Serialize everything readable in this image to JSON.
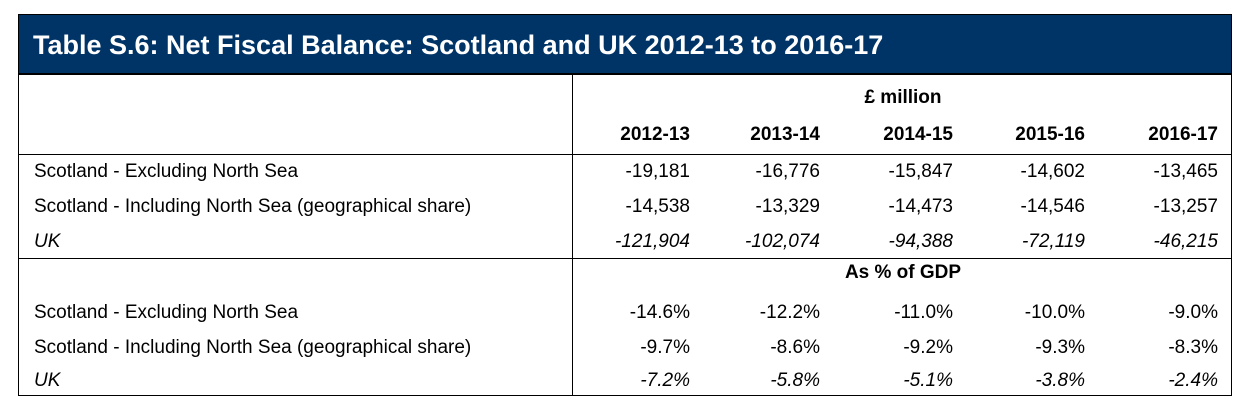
{
  "title": "Table S.6: Net Fiscal Balance: Scotland and UK 2012-13 to 2016-17",
  "years": [
    "2012-13",
    "2013-14",
    "2014-15",
    "2015-16",
    "2016-17"
  ],
  "sections": [
    {
      "heading": "£ million",
      "rows": [
        {
          "label": "Scotland - Excluding North Sea",
          "values": [
            "-19,181",
            "-16,776",
            "-15,847",
            "-14,602",
            "-13,465"
          ]
        },
        {
          "label": "Scotland - Including North Sea (geographical share)",
          "values": [
            "-14,538",
            "-13,329",
            "-14,473",
            "-14,546",
            "-13,257"
          ]
        },
        {
          "label": "UK",
          "values": [
            "-121,904",
            "-102,074",
            "-94,388",
            "-72,119",
            "-46,215"
          ]
        }
      ]
    },
    {
      "heading": "As % of GDP",
      "rows": [
        {
          "label": "Scotland - Excluding North Sea",
          "values": [
            "-14.6%",
            "-12.2%",
            "-11.0%",
            "-10.0%",
            "-9.0%"
          ]
        },
        {
          "label": "Scotland - Including North Sea (geographical share)",
          "values": [
            "-9.7%",
            "-8.6%",
            "-9.2%",
            "-9.3%",
            "-8.3%"
          ]
        },
        {
          "label": "UK",
          "values": [
            "-7.2%",
            "-5.8%",
            "-5.1%",
            "-3.8%",
            "-2.4%"
          ]
        }
      ]
    }
  ]
}
